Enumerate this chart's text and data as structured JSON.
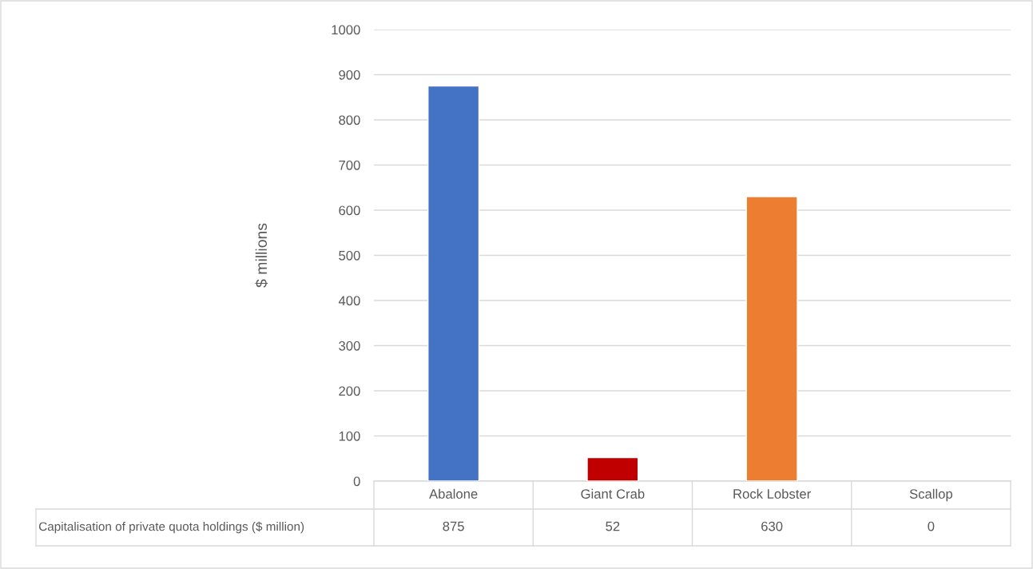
{
  "chart_data": {
    "type": "bar",
    "ylabel": "$ millions",
    "categories": [
      "Abalone",
      "Giant Crab",
      "Rock Lobster",
      "Scallop"
    ],
    "series": [
      {
        "name": "Capitalisation of private quota holdings ($ million)",
        "colors": [
          "#4472c4",
          "#c00000",
          "#ed7d31",
          null
        ],
        "values": [
          875,
          52,
          630,
          0
        ]
      }
    ],
    "ylim": [
      0,
      1000
    ],
    "yticks": [
      0,
      100,
      200,
      300,
      400,
      500,
      600,
      700,
      800,
      900,
      1000
    ],
    "grid": "y",
    "data_labels": true
  }
}
